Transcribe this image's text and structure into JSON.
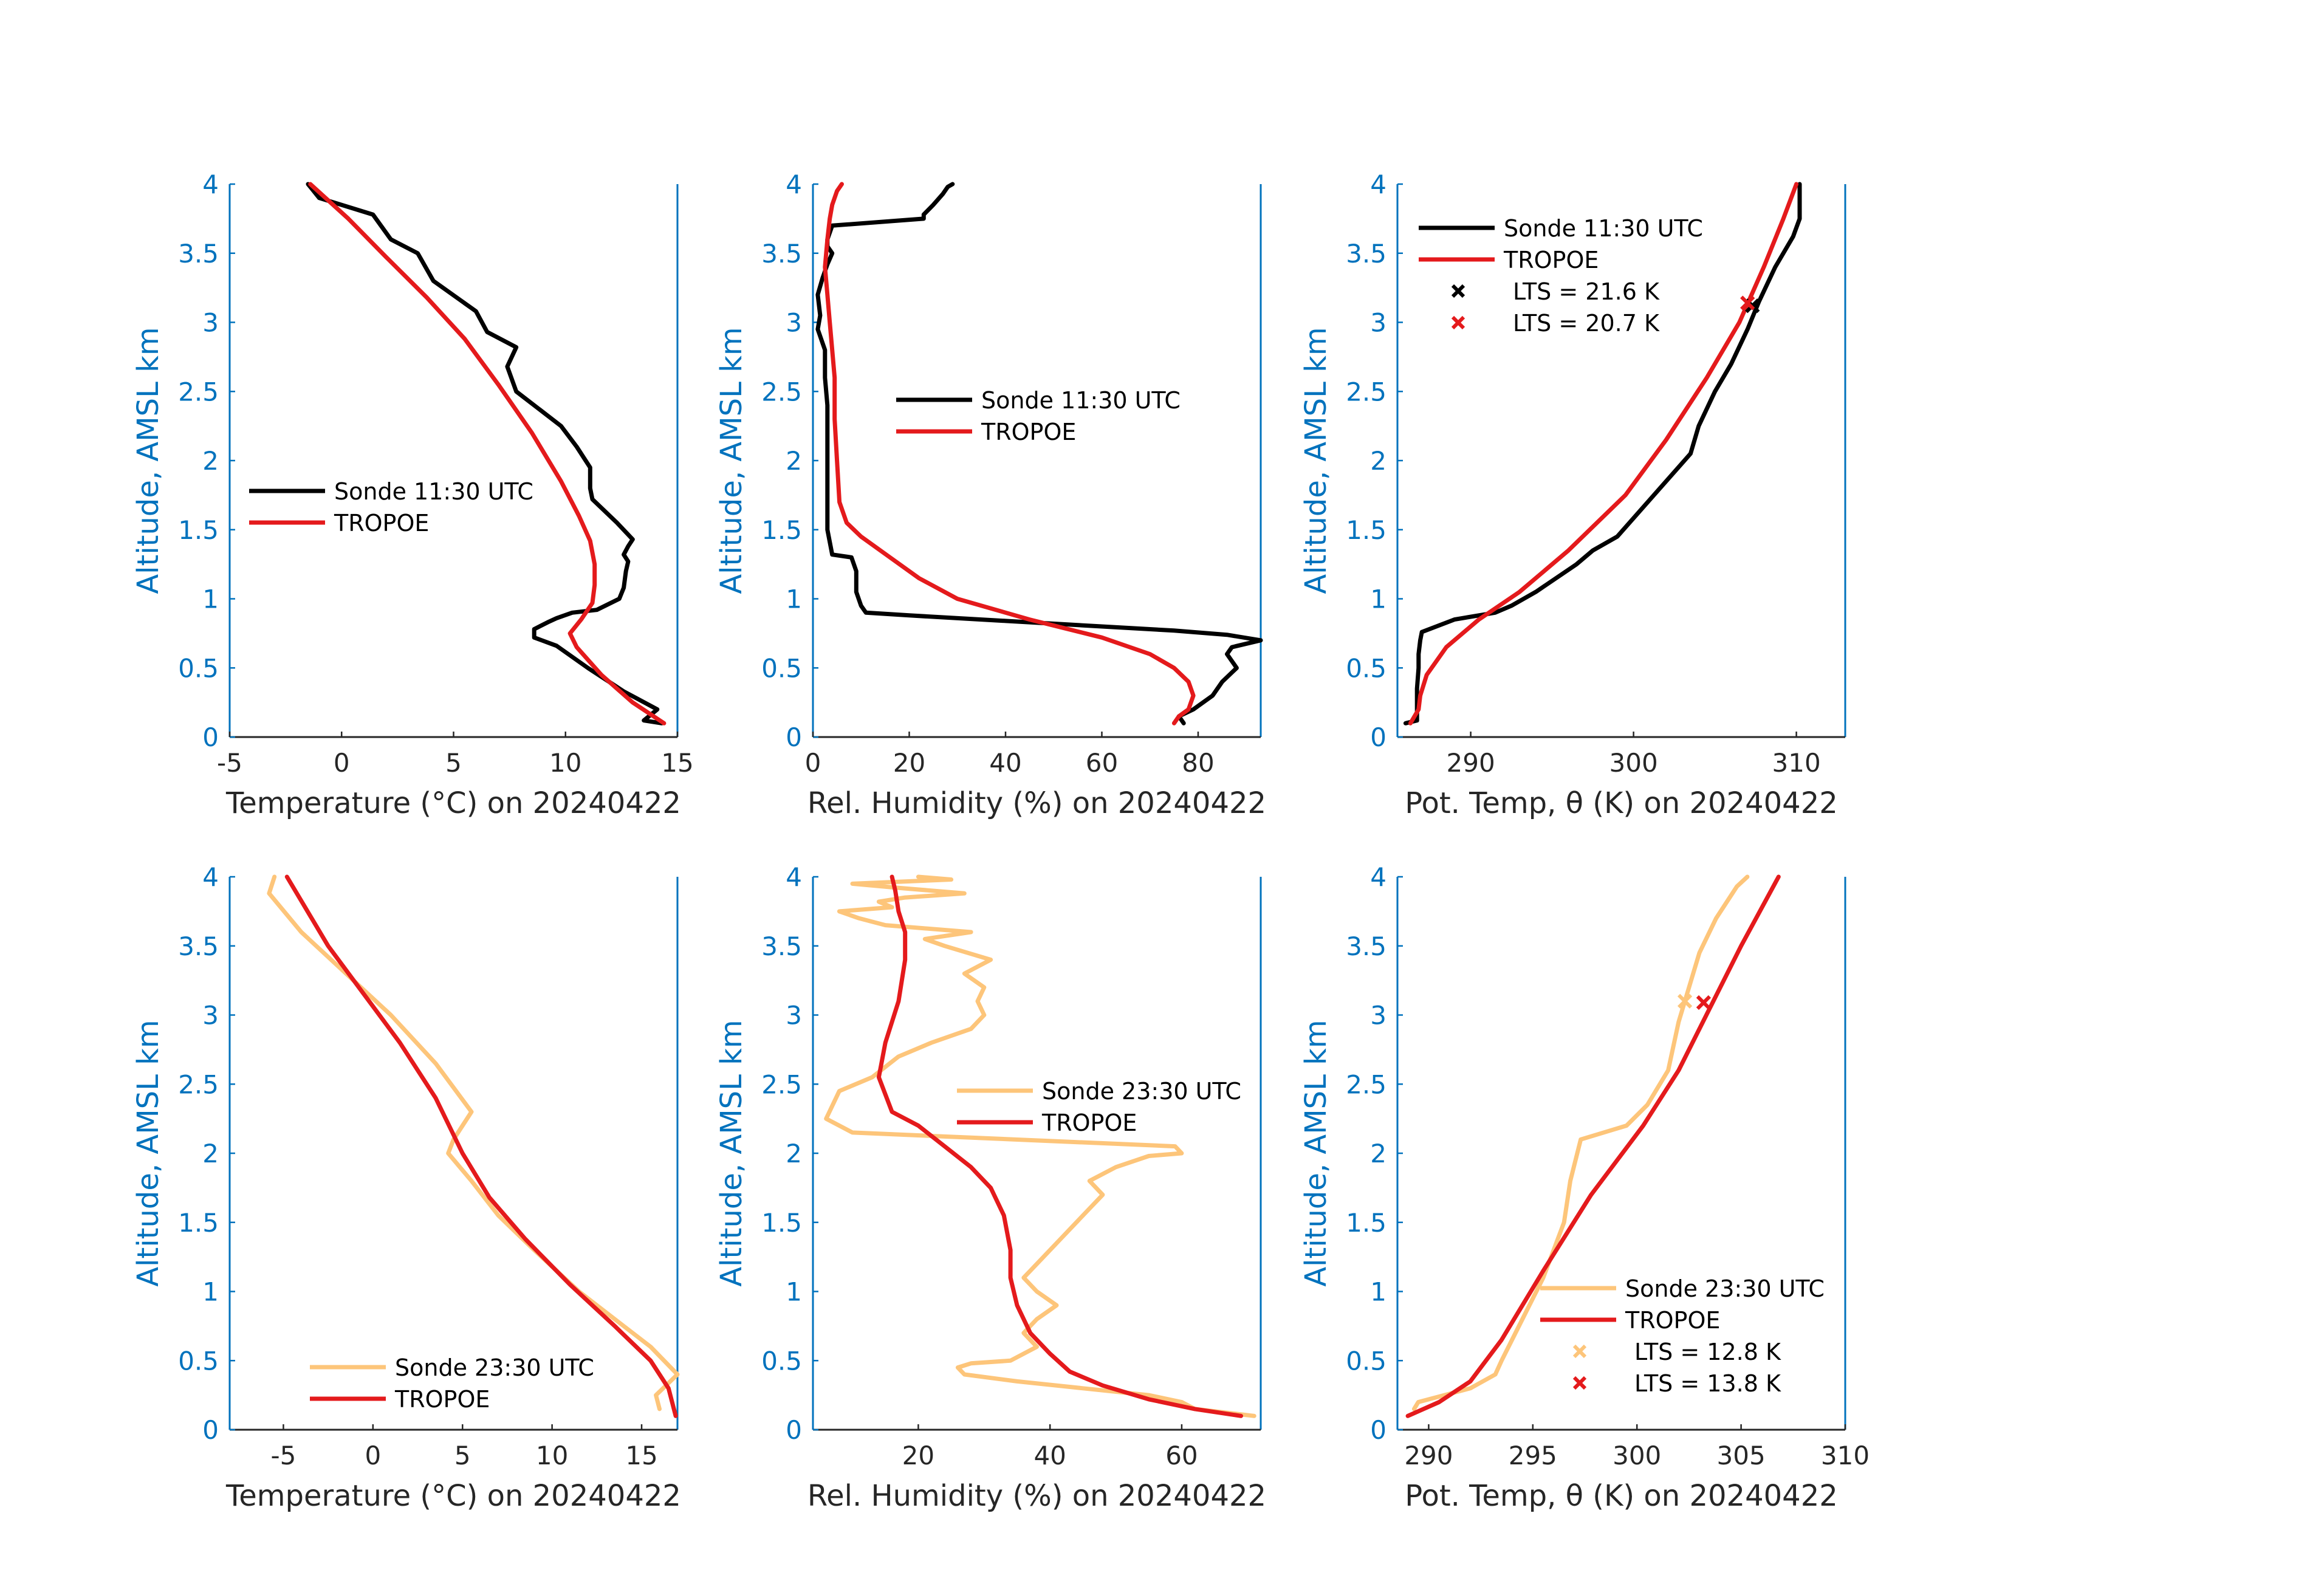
{
  "colors": {
    "axis": "#0072BD",
    "text": "#262626",
    "sonde_day": "#000000",
    "sonde_night": "#FDC57A",
    "tropoe": "#E41A1C"
  },
  "chart_data": [
    {
      "id": "temp_day",
      "type": "line",
      "xlabel": "Temperature (°C) on 20240422",
      "ylabel": "Altitude, AMSL km",
      "xlim": [
        -5,
        15
      ],
      "ylim": [
        0,
        4
      ],
      "xticks": [
        -5,
        0,
        5,
        10,
        15
      ],
      "xtick_labels": [
        "-5",
        "0",
        "5",
        "10",
        "15"
      ],
      "yticks": [
        0,
        0.5,
        1,
        1.5,
        2,
        2.5,
        3,
        3.5,
        4
      ],
      "ytick_labels": [
        "0",
        "0.5",
        "1",
        "1.5",
        "2",
        "2.5",
        "3",
        "3.5",
        "4"
      ],
      "legend": "center-left",
      "series": [
        {
          "name": "Sonde 11:30 UTC",
          "color_key": "sonde_day",
          "x": [
            14.3,
            13.5,
            14.1,
            12.6,
            11.0,
            9.6,
            8.6,
            8.6,
            9.2,
            9.6,
            10.3,
            11.4,
            12.4,
            12.6,
            12.7,
            12.8,
            12.6,
            12.8,
            13.0,
            12.3,
            11.2,
            11.1,
            11.1,
            10.5,
            9.8,
            7.8,
            7.4,
            7.8,
            6.5,
            6.0,
            4.1,
            3.4,
            2.2,
            1.4,
            -1.0,
            -1.5
          ],
          "y": [
            0.1,
            0.12,
            0.2,
            0.33,
            0.5,
            0.66,
            0.72,
            0.78,
            0.83,
            0.86,
            0.9,
            0.92,
            1.0,
            1.08,
            1.2,
            1.27,
            1.32,
            1.38,
            1.43,
            1.55,
            1.72,
            1.8,
            1.95,
            2.1,
            2.25,
            2.5,
            2.68,
            2.82,
            2.93,
            3.08,
            3.3,
            3.5,
            3.6,
            3.78,
            3.9,
            4.0
          ]
        },
        {
          "name": "TROPOE",
          "color_key": "tropoe",
          "x": [
            14.4,
            13.0,
            11.6,
            10.5,
            10.2,
            10.7,
            11.2,
            11.3,
            11.3,
            11.1,
            10.6,
            9.8,
            8.5,
            7.0,
            5.5,
            3.8,
            2.0,
            0.3,
            -1.4
          ],
          "y": [
            0.1,
            0.25,
            0.45,
            0.65,
            0.75,
            0.85,
            0.97,
            1.1,
            1.25,
            1.42,
            1.6,
            1.85,
            2.2,
            2.55,
            2.88,
            3.18,
            3.47,
            3.75,
            4.0
          ]
        }
      ]
    },
    {
      "id": "rh_day",
      "type": "line",
      "xlabel": "Rel. Humidity (%) on 20240422",
      "ylabel": "Altitude, AMSL km",
      "xlim": [
        0,
        93
      ],
      "ylim": [
        0,
        4
      ],
      "xticks": [
        0,
        20,
        40,
        60,
        80
      ],
      "xtick_labels": [
        "0",
        "20",
        "40",
        "60",
        "80"
      ],
      "yticks": [
        0,
        0.5,
        1,
        1.5,
        2,
        2.5,
        3,
        3.5,
        4
      ],
      "ytick_labels": [
        "0",
        "0.5",
        "1",
        "1.5",
        "2",
        "2.5",
        "3",
        "3.5",
        "4"
      ],
      "legend": "center",
      "series": [
        {
          "name": "Sonde 11:30 UTC",
          "color_key": "sonde_day",
          "x": [
            77,
            76,
            79,
            83,
            85,
            88,
            86,
            87,
            93,
            86,
            75,
            60,
            40,
            20,
            11,
            10,
            9,
            9,
            8,
            4,
            3,
            3,
            3,
            3,
            2.5,
            2.5,
            1,
            1.5,
            1,
            2,
            3,
            4,
            3,
            3,
            4,
            23,
            23,
            25,
            27,
            28,
            29
          ],
          "y": [
            0.1,
            0.15,
            0.2,
            0.3,
            0.4,
            0.5,
            0.6,
            0.65,
            0.7,
            0.74,
            0.77,
            0.8,
            0.84,
            0.88,
            0.9,
            0.95,
            1.05,
            1.2,
            1.3,
            1.32,
            1.5,
            1.8,
            2.1,
            2.4,
            2.6,
            2.8,
            2.95,
            3.05,
            3.2,
            3.32,
            3.42,
            3.5,
            3.55,
            3.6,
            3.7,
            3.75,
            3.78,
            3.85,
            3.93,
            3.98,
            4.0
          ]
        },
        {
          "name": "TROPOE",
          "color_key": "tropoe",
          "x": [
            75,
            76,
            78,
            79,
            78,
            75,
            70,
            60,
            45,
            30,
            22,
            16,
            10,
            7,
            5.5,
            5,
            4.5,
            4.5,
            4,
            3.5,
            3,
            2.5,
            3,
            3.5,
            4,
            5,
            6
          ],
          "y": [
            0.1,
            0.15,
            0.2,
            0.3,
            0.4,
            0.5,
            0.6,
            0.72,
            0.85,
            1.0,
            1.15,
            1.3,
            1.45,
            1.55,
            1.7,
            2.0,
            2.3,
            2.6,
            2.8,
            3.0,
            3.2,
            3.4,
            3.6,
            3.75,
            3.85,
            3.95,
            4.0
          ]
        }
      ]
    },
    {
      "id": "theta_day",
      "type": "line",
      "xlabel": "Pot. Temp, θ (K) on 20240422",
      "ylabel": "Altitude, AMSL km",
      "xlim": [
        285.5,
        313
      ],
      "ylim": [
        0,
        4
      ],
      "xticks": [
        290,
        300,
        310
      ],
      "xtick_labels": [
        "290",
        "300",
        "310"
      ],
      "yticks": [
        0,
        0.5,
        1,
        1.5,
        2,
        2.5,
        3,
        3.5,
        4
      ],
      "ytick_labels": [
        "0",
        "0.5",
        "1",
        "1.5",
        "2",
        "2.5",
        "3",
        "3.5",
        "4"
      ],
      "legend": "top-left",
      "series": [
        {
          "name": "Sonde 11:30 UTC",
          "color_key": "sonde_day",
          "x": [
            286,
            286.7,
            286.7,
            286.7,
            286.8,
            286.8,
            286.9,
            287.0,
            289.0,
            291.5,
            292.5,
            294.0,
            296.5,
            297.5,
            299.0,
            300.5,
            302.0,
            303.5,
            304.0,
            305.0,
            306.0,
            307.0,
            307.7,
            308.7,
            309.8,
            310.2,
            310.2
          ],
          "y": [
            0.1,
            0.12,
            0.2,
            0.35,
            0.5,
            0.6,
            0.7,
            0.76,
            0.85,
            0.9,
            0.95,
            1.05,
            1.25,
            1.35,
            1.45,
            1.65,
            1.85,
            2.05,
            2.25,
            2.5,
            2.7,
            2.95,
            3.15,
            3.4,
            3.62,
            3.75,
            4.0
          ]
        },
        {
          "name": "TROPOE",
          "color_key": "tropoe",
          "x": [
            286.3,
            286.8,
            286.9,
            287.3,
            288.5,
            290.5,
            293.0,
            296.0,
            299.5,
            302.0,
            304.5,
            306.5,
            308.0,
            309.2,
            310.0
          ],
          "y": [
            0.1,
            0.2,
            0.3,
            0.45,
            0.65,
            0.85,
            1.05,
            1.35,
            1.75,
            2.15,
            2.6,
            3.0,
            3.4,
            3.75,
            4.0
          ]
        },
        {
          "name": "LTS = 21.6 K",
          "color_key": "sonde_day",
          "marker": "x",
          "x": [
            307.3
          ],
          "y": [
            3.12
          ]
        },
        {
          "name": "LTS = 20.7 K",
          "color_key": "tropoe",
          "marker": "x",
          "x": [
            307.0
          ],
          "y": [
            3.14
          ]
        }
      ]
    },
    {
      "id": "temp_night",
      "type": "line",
      "xlabel": "Temperature (°C) on 20240422",
      "ylabel": "Altitude, AMSL km",
      "xlim": [
        -8,
        17
      ],
      "ylim": [
        0,
        4
      ],
      "xticks": [
        -5,
        0,
        5,
        10,
        15
      ],
      "xtick_labels": [
        "-5",
        "0",
        "5",
        "10",
        "15"
      ],
      "yticks": [
        0,
        0.5,
        1,
        1.5,
        2,
        2.5,
        3,
        3.5,
        4
      ],
      "ytick_labels": [
        "0",
        "0.5",
        "1",
        "1.5",
        "2",
        "2.5",
        "3",
        "3.5",
        "4"
      ],
      "legend": "bottom-center",
      "series": [
        {
          "name": "Sonde 23:30 UTC",
          "color_key": "sonde_night",
          "x": [
            16.0,
            15.8,
            16.6,
            17.0,
            15.5,
            13.5,
            11.5,
            9.0,
            7.0,
            5.5,
            4.2,
            4.5,
            5.5,
            3.5,
            1.0,
            -1.5,
            -4.0,
            -5.8,
            -5.5
          ],
          "y": [
            0.15,
            0.25,
            0.35,
            0.4,
            0.6,
            0.8,
            1.0,
            1.3,
            1.55,
            1.8,
            2.0,
            2.1,
            2.3,
            2.65,
            3.0,
            3.3,
            3.6,
            3.88,
            4.0
          ]
        },
        {
          "name": "TROPOE",
          "color_key": "tropoe",
          "x": [
            16.9,
            16.5,
            15.5,
            13.5,
            11.0,
            8.5,
            6.5,
            5.0,
            3.5,
            1.5,
            -0.5,
            -2.5,
            -4.8
          ],
          "y": [
            0.1,
            0.3,
            0.5,
            0.75,
            1.05,
            1.38,
            1.68,
            2.0,
            2.4,
            2.8,
            3.15,
            3.5,
            4.0
          ]
        }
      ]
    },
    {
      "id": "rh_night",
      "type": "line",
      "xlabel": "Rel. Humidity (%) on 20240422",
      "ylabel": "Altitude, AMSL km",
      "xlim": [
        4,
        72
      ],
      "ylim": [
        0,
        4
      ],
      "xticks": [
        20,
        40,
        60
      ],
      "xtick_labels": [
        "20",
        "40",
        "60"
      ],
      "yticks": [
        0,
        0.5,
        1,
        1.5,
        2,
        2.5,
        3,
        3.5,
        4
      ],
      "ytick_labels": [
        "0",
        "0.5",
        "1",
        "1.5",
        "2",
        "2.5",
        "3",
        "3.5",
        "4"
      ],
      "legend": "center-right",
      "series": [
        {
          "name": "Sonde 23:30 UTC",
          "color_key": "sonde_night",
          "x": [
            71,
            62,
            60,
            55,
            45,
            35,
            27,
            26,
            28,
            34,
            38,
            36,
            38,
            41,
            38,
            36,
            37,
            40,
            42,
            44,
            46,
            48,
            46,
            50,
            55,
            60,
            59,
            10,
            6,
            8,
            13,
            17,
            22,
            28,
            30,
            29,
            30,
            27,
            31,
            24,
            21,
            28,
            15,
            11,
            8,
            16,
            14,
            18,
            27,
            17,
            10,
            25,
            20
          ],
          "y": [
            0.1,
            0.15,
            0.2,
            0.25,
            0.3,
            0.35,
            0.4,
            0.45,
            0.48,
            0.5,
            0.6,
            0.7,
            0.8,
            0.9,
            1.0,
            1.1,
            1.15,
            1.3,
            1.4,
            1.5,
            1.6,
            1.7,
            1.8,
            1.9,
            1.98,
            2.0,
            2.05,
            2.15,
            2.25,
            2.45,
            2.55,
            2.7,
            2.8,
            2.9,
            3.0,
            3.1,
            3.2,
            3.3,
            3.4,
            3.5,
            3.55,
            3.6,
            3.65,
            3.7,
            3.75,
            3.78,
            3.82,
            3.85,
            3.88,
            3.92,
            3.95,
            3.98,
            4.0
          ]
        },
        {
          "name": "TROPOE",
          "color_key": "tropoe",
          "x": [
            69,
            62,
            55,
            48,
            43,
            40,
            37,
            35,
            34,
            34,
            33,
            31,
            28,
            24,
            20,
            16,
            14,
            15,
            17,
            18,
            18,
            17,
            16.5,
            16
          ],
          "y": [
            0.1,
            0.15,
            0.22,
            0.32,
            0.42,
            0.55,
            0.7,
            0.9,
            1.1,
            1.3,
            1.55,
            1.75,
            1.9,
            2.05,
            2.2,
            2.3,
            2.55,
            2.8,
            3.1,
            3.4,
            3.6,
            3.75,
            3.9,
            4.0
          ]
        },
        {
          "name": "",
          "color_key": "sonde_night",
          "x": [],
          "y": []
        }
      ]
    },
    {
      "id": "theta_night",
      "type": "line",
      "xlabel": "Pot. Temp, θ (K) on 20240422",
      "ylabel": "Altitude, AMSL km",
      "xlim": [
        288.5,
        310
      ],
      "ylim": [
        0,
        4
      ],
      "xticks": [
        290,
        295,
        300,
        305,
        310
      ],
      "xtick_labels": [
        "290",
        "295",
        "300",
        "305",
        "310"
      ],
      "yticks": [
        0,
        0.5,
        1,
        1.5,
        2,
        2.5,
        3,
        3.5,
        4
      ],
      "ytick_labels": [
        "0",
        "0.5",
        "1",
        "1.5",
        "2",
        "2.5",
        "3",
        "3.5",
        "4"
      ],
      "legend": "bottom-right",
      "series": [
        {
          "name": "Sonde 23:30 UTC",
          "color_key": "sonde_night",
          "x": [
            289.3,
            289.5,
            292.0,
            293.2,
            293.5,
            294.5,
            295.5,
            296.5,
            296.8,
            297.3,
            299.5,
            300.5,
            301.5,
            302.0,
            302.5,
            303.0,
            303.8,
            304.8,
            305.3
          ],
          "y": [
            0.15,
            0.2,
            0.3,
            0.4,
            0.5,
            0.8,
            1.1,
            1.5,
            1.8,
            2.1,
            2.2,
            2.35,
            2.6,
            2.95,
            3.2,
            3.45,
            3.7,
            3.93,
            4.0
          ]
        },
        {
          "name": "TROPOE",
          "color_key": "tropoe",
          "x": [
            289.0,
            290.5,
            292.0,
            293.5,
            295.5,
            297.8,
            300.3,
            302.0,
            303.5,
            305.0,
            306.8
          ],
          "y": [
            0.1,
            0.2,
            0.35,
            0.65,
            1.15,
            1.7,
            2.2,
            2.6,
            3.05,
            3.5,
            4.0
          ]
        },
        {
          "name": "LTS = 12.8 K",
          "color_key": "sonde_night",
          "marker": "x",
          "x": [
            302.3
          ],
          "y": [
            3.1
          ]
        },
        {
          "name": "LTS = 13.8 K",
          "color_key": "tropoe",
          "marker": "x",
          "x": [
            303.2
          ],
          "y": [
            3.09
          ]
        }
      ]
    }
  ]
}
